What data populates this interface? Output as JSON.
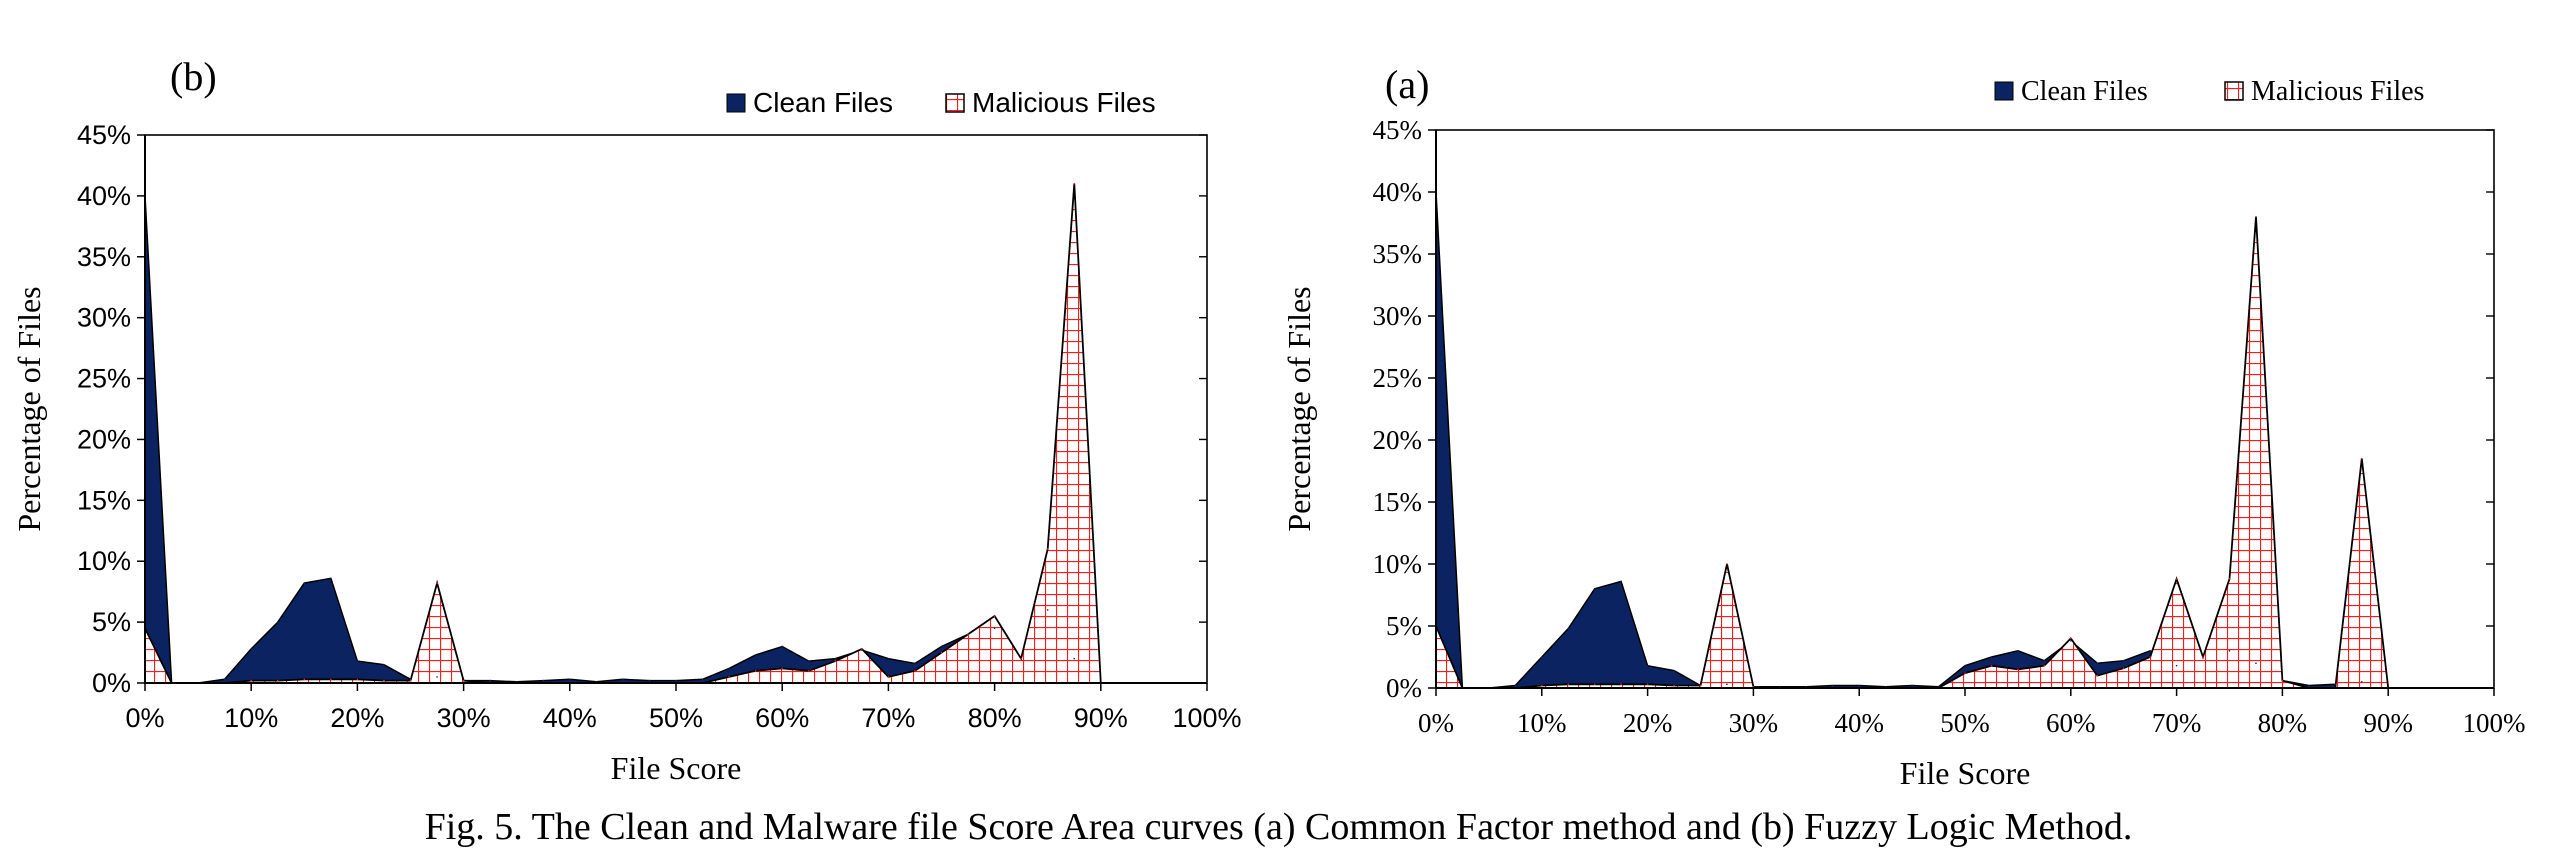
{
  "caption": "Fig. 5. The Clean and Malware file Score Area curves (a) Common Factor method and (b) Fuzzy Logic Method.",
  "colors": {
    "clean": "#0b2461",
    "malicious": "#ff1a1a",
    "grid_fill": "#ffffff",
    "axis": "#000000"
  },
  "chart_data": [
    {
      "type": "area",
      "panel_label": "(b)",
      "xlabel": "File Score",
      "ylabel": "Percentage of Files",
      "x_ticks": [
        "0%",
        "10%",
        "20%",
        "30%",
        "40%",
        "50%",
        "60%",
        "70%",
        "80%",
        "90%",
        "100%"
      ],
      "y_ticks": [
        "0%",
        "5%",
        "10%",
        "15%",
        "20%",
        "25%",
        "30%",
        "35%",
        "40%",
        "45%"
      ],
      "xlim": [
        0,
        100
      ],
      "ylim": [
        0,
        45
      ],
      "legend_position": "top-right",
      "series": [
        {
          "name": "Clean Files",
          "x": [
            0,
            2.5,
            5,
            7.5,
            10,
            12.5,
            15,
            17.5,
            20,
            22.5,
            25,
            27.5,
            30,
            32.5,
            35,
            37.5,
            40,
            42.5,
            45,
            47.5,
            50,
            52.5,
            55,
            57.5,
            60,
            62.5,
            65,
            67.5,
            70,
            72.5,
            75,
            77.5,
            80,
            82.5,
            85,
            87.5,
            90,
            92.5,
            95,
            97.5,
            100
          ],
          "values": [
            40,
            0,
            0,
            0.3,
            2.8,
            5,
            8.2,
            8.6,
            1.8,
            1.5,
            0.3,
            0.5,
            0.2,
            0.2,
            0.1,
            0.2,
            0.3,
            0.1,
            0.3,
            0.2,
            0.2,
            0.3,
            1.2,
            2.3,
            3,
            1.8,
            2,
            2.7,
            2,
            1.6,
            3,
            4,
            4.5,
            2,
            6,
            2,
            0,
            0,
            0,
            0,
            0
          ]
        },
        {
          "name": "Malicious Files",
          "x": [
            0,
            2.5,
            5,
            7.5,
            10,
            12.5,
            15,
            17.5,
            20,
            22.5,
            25,
            27.5,
            30,
            32.5,
            35,
            37.5,
            40,
            42.5,
            45,
            47.5,
            50,
            52.5,
            55,
            57.5,
            60,
            62.5,
            65,
            67.5,
            70,
            72.5,
            75,
            77.5,
            80,
            82.5,
            85,
            87.5,
            90,
            92.5,
            95,
            97.5,
            100
          ],
          "values": [
            4.5,
            0,
            0,
            0,
            0.2,
            0.2,
            0.3,
            0.3,
            0.3,
            0.2,
            0.2,
            8.2,
            0.2,
            0,
            0,
            0,
            0,
            0,
            0,
            0,
            0,
            0,
            0.5,
            1,
            1.2,
            1,
            1.8,
            2.8,
            0.5,
            1,
            2.5,
            4,
            5.5,
            2,
            11,
            41,
            0,
            0,
            0,
            0,
            0
          ]
        }
      ]
    },
    {
      "type": "area",
      "panel_label": "(a)",
      "xlabel": "File Score",
      "ylabel": "Percentage of Files",
      "x_ticks": [
        "0%",
        "10%",
        "20%",
        "30%",
        "40%",
        "50%",
        "60%",
        "70%",
        "80%",
        "90%",
        "100%"
      ],
      "y_ticks": [
        "0%",
        "5%",
        "10%",
        "15%",
        "20%",
        "25%",
        "30%",
        "35%",
        "40%",
        "45%"
      ],
      "xlim": [
        0,
        100
      ],
      "ylim": [
        0,
        45
      ],
      "legend_position": "top-right",
      "series": [
        {
          "name": "Clean Files",
          "x": [
            0,
            2.5,
            5,
            7.5,
            10,
            12.5,
            15,
            17.5,
            20,
            22.5,
            25,
            27.5,
            30,
            32.5,
            35,
            37.5,
            40,
            42.5,
            45,
            47.5,
            50,
            52.5,
            55,
            57.5,
            60,
            62.5,
            65,
            67.5,
            70,
            72.5,
            75,
            77.5,
            80,
            82.5,
            85,
            87.5,
            90,
            92.5,
            95,
            97.5,
            100
          ],
          "values": [
            40,
            0,
            0,
            0.2,
            2.5,
            4.8,
            8,
            8.6,
            1.8,
            1.4,
            0.2,
            0.3,
            0.1,
            0.1,
            0.1,
            0.2,
            0.2,
            0.1,
            0.2,
            0.1,
            1.8,
            2.5,
            3,
            2.2,
            3.8,
            2,
            2.2,
            3,
            1.8,
            2.5,
            3,
            2,
            0.6,
            0.2,
            0.3,
            0.5,
            0,
            0,
            0,
            0,
            0
          ]
        },
        {
          "name": "Malicious Files",
          "x": [
            0,
            2.5,
            5,
            7.5,
            10,
            12.5,
            15,
            17.5,
            20,
            22.5,
            25,
            27.5,
            30,
            32.5,
            35,
            37.5,
            40,
            42.5,
            45,
            47.5,
            50,
            52.5,
            55,
            57.5,
            60,
            62.5,
            65,
            67.5,
            70,
            72.5,
            75,
            77.5,
            80,
            82.5,
            85,
            87.5,
            90,
            92.5,
            95,
            97.5,
            100
          ],
          "values": [
            5,
            0,
            0,
            0,
            0.2,
            0.3,
            0.3,
            0.3,
            0.3,
            0.2,
            0.2,
            10,
            0.1,
            0,
            0,
            0,
            0,
            0,
            0,
            0,
            1.2,
            1.8,
            1.5,
            1.8,
            4,
            1,
            1.6,
            2.5,
            8.8,
            2.5,
            8.8,
            38,
            0.6,
            0,
            0,
            18.5,
            0,
            0,
            0,
            0,
            0
          ]
        }
      ]
    }
  ]
}
